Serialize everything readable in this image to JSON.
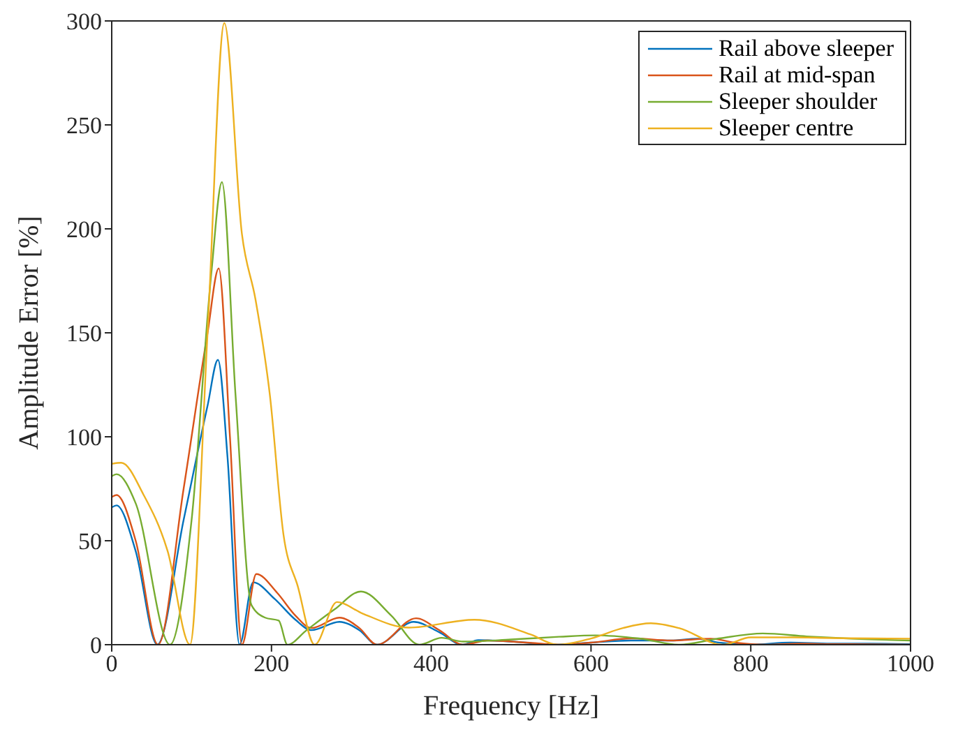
{
  "chart_data": {
    "type": "line",
    "xlabel": "Frequency [Hz]",
    "ylabel": "Amplitude Error [%]",
    "xlim": [
      0,
      1000
    ],
    "xticks": [
      0,
      200,
      400,
      600,
      800,
      1000
    ],
    "ylim": [
      0,
      300
    ],
    "yticks": [
      0,
      50,
      100,
      150,
      200,
      250,
      300
    ],
    "legend": "top right",
    "marker": "none",
    "line_style": "solid",
    "series": [
      {
        "name": "Rail above sleeper",
        "color": "#0072bd",
        "x": [
          0,
          6,
          30,
          57,
          90,
          120,
          133,
          145,
          160,
          177,
          204,
          230,
          250,
          285,
          310,
          332,
          378,
          410,
          439,
          459,
          500,
          558,
          600,
          650,
          700,
          733,
          760,
          800,
          850,
          900,
          950,
          1000
        ],
        "values": [
          66,
          67,
          45,
          0,
          60,
          115,
          137,
          90,
          0,
          30,
          22,
          12,
          7,
          11,
          7,
          0,
          11,
          6,
          0,
          2.2,
          1.5,
          0,
          1,
          2,
          2,
          2.9,
          1,
          0,
          1,
          0.5,
          0.5,
          0.3
        ]
      },
      {
        "name": "Rail at mid-span",
        "color": "#d95319",
        "x": [
          0,
          6,
          30,
          58,
          90,
          120,
          134,
          148,
          163,
          181,
          207,
          230,
          250,
          285,
          310,
          332,
          381,
          410,
          440,
          470,
          520,
          560,
          600,
          651,
          700,
          750,
          780,
          820,
          860,
          900,
          950,
          1000
        ],
        "values": [
          71,
          72,
          50,
          0,
          75,
          150,
          181,
          100,
          0,
          34,
          25,
          14,
          8,
          13,
          8,
          0,
          12.7,
          7,
          0,
          2,
          1,
          0,
          1,
          3,
          2,
          2.9,
          1,
          0,
          0.5,
          0.3,
          0.2,
          0
        ]
      },
      {
        "name": "Sleeper shoulder",
        "color": "#77ac30",
        "x": [
          0,
          6,
          30,
          73,
          100,
          125,
          138,
          155,
          175,
          192,
          209,
          220,
          244,
          279,
          312,
          350,
          385,
          413,
          440,
          500,
          560,
          605,
          660,
          710,
          760,
          815,
          870,
          920,
          1000
        ],
        "values": [
          81,
          82,
          68,
          0,
          60,
          180,
          222.5,
          120,
          19,
          13,
          11.6,
          0,
          7,
          17,
          25.6,
          14,
          0,
          3.3,
          1.5,
          2.5,
          3.8,
          4.5,
          3,
          0,
          3,
          5.4,
          4,
          3,
          2
        ]
      },
      {
        "name": "Sleeper centre",
        "color": "#edb120",
        "x": [
          0,
          12,
          40,
          70,
          98,
          120,
          141,
          163,
          180,
          198,
          215,
          233,
          254,
          282,
          314,
          372,
          454,
          524,
          558,
          600,
          640,
          675,
          710,
          765,
          800,
          850,
          900,
          950,
          1000
        ],
        "values": [
          87,
          87.5,
          72,
          45,
          0,
          150,
          299,
          197.5,
          166,
          120,
          53,
          28,
          0,
          20.5,
          15,
          8.2,
          12,
          5,
          0,
          3,
          8,
          10.3,
          8,
          0,
          3.5,
          3.5,
          3.2,
          3,
          2.9
        ]
      }
    ]
  }
}
